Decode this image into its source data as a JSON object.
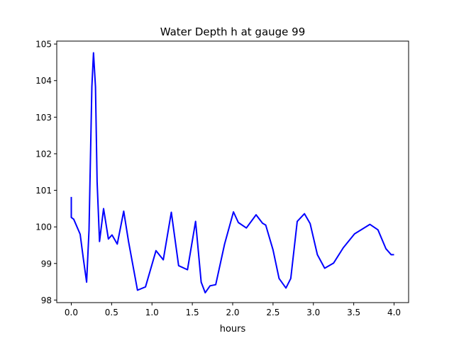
{
  "chart_data": {
    "type": "line",
    "title": "Water Depth h at gauge 99",
    "xlabel": "hours",
    "ylabel": "",
    "xlim": [
      -0.18,
      4.18
    ],
    "ylim": [
      97.93,
      105.08
    ],
    "xticks": [
      0.0,
      0.5,
      1.0,
      1.5,
      2.0,
      2.5,
      3.0,
      3.5,
      4.0
    ],
    "xtick_labels": [
      "0.0",
      "0.5",
      "1.0",
      "1.5",
      "2.0",
      "2.5",
      "3.0",
      "3.5",
      "4.0"
    ],
    "yticks": [
      98,
      99,
      100,
      101,
      102,
      103,
      104,
      105
    ],
    "ytick_labels": [
      "98",
      "99",
      "100",
      "101",
      "102",
      "103",
      "104",
      "105"
    ],
    "grid": false,
    "series": [
      {
        "name": "h",
        "color": "#0000ff",
        "x": [
          0,
          0,
          0.03,
          0.11,
          0.15,
          0.19,
          0.22,
          0.255,
          0.275,
          0.3,
          0.32,
          0.35,
          0.4,
          0.46,
          0.505,
          0.57,
          0.65,
          0.71,
          0.82,
          0.92,
          1.05,
          1.14,
          1.24,
          1.33,
          1.44,
          1.54,
          1.61,
          1.66,
          1.72,
          1.79,
          1.9,
          2.01,
          2.07,
          2.17,
          2.29,
          2.37,
          2.41,
          2.5,
          2.575,
          2.66,
          2.72,
          2.8,
          2.89,
          2.96,
          3.05,
          3.14,
          3.25,
          3.37,
          3.51,
          3.7,
          3.8,
          3.9,
          3.965,
          4.0
        ],
        "y": [
          100.82,
          100.26,
          100.21,
          99.8,
          99.13,
          98.49,
          99.92,
          103.83,
          104.76,
          103.83,
          101.23,
          99.6,
          100.5,
          99.67,
          99.78,
          99.53,
          100.43,
          99.6,
          98.27,
          98.36,
          99.35,
          99.1,
          100.4,
          98.94,
          98.83,
          100.15,
          98.49,
          98.2,
          98.39,
          98.42,
          99.53,
          100.41,
          100.12,
          99.97,
          100.33,
          100.1,
          100.05,
          99.37,
          98.59,
          98.33,
          98.59,
          100.15,
          100.36,
          100.09,
          99.24,
          98.87,
          99.01,
          99.43,
          99.81,
          100.07,
          99.92,
          99.4,
          99.24,
          99.24
        ]
      }
    ]
  }
}
